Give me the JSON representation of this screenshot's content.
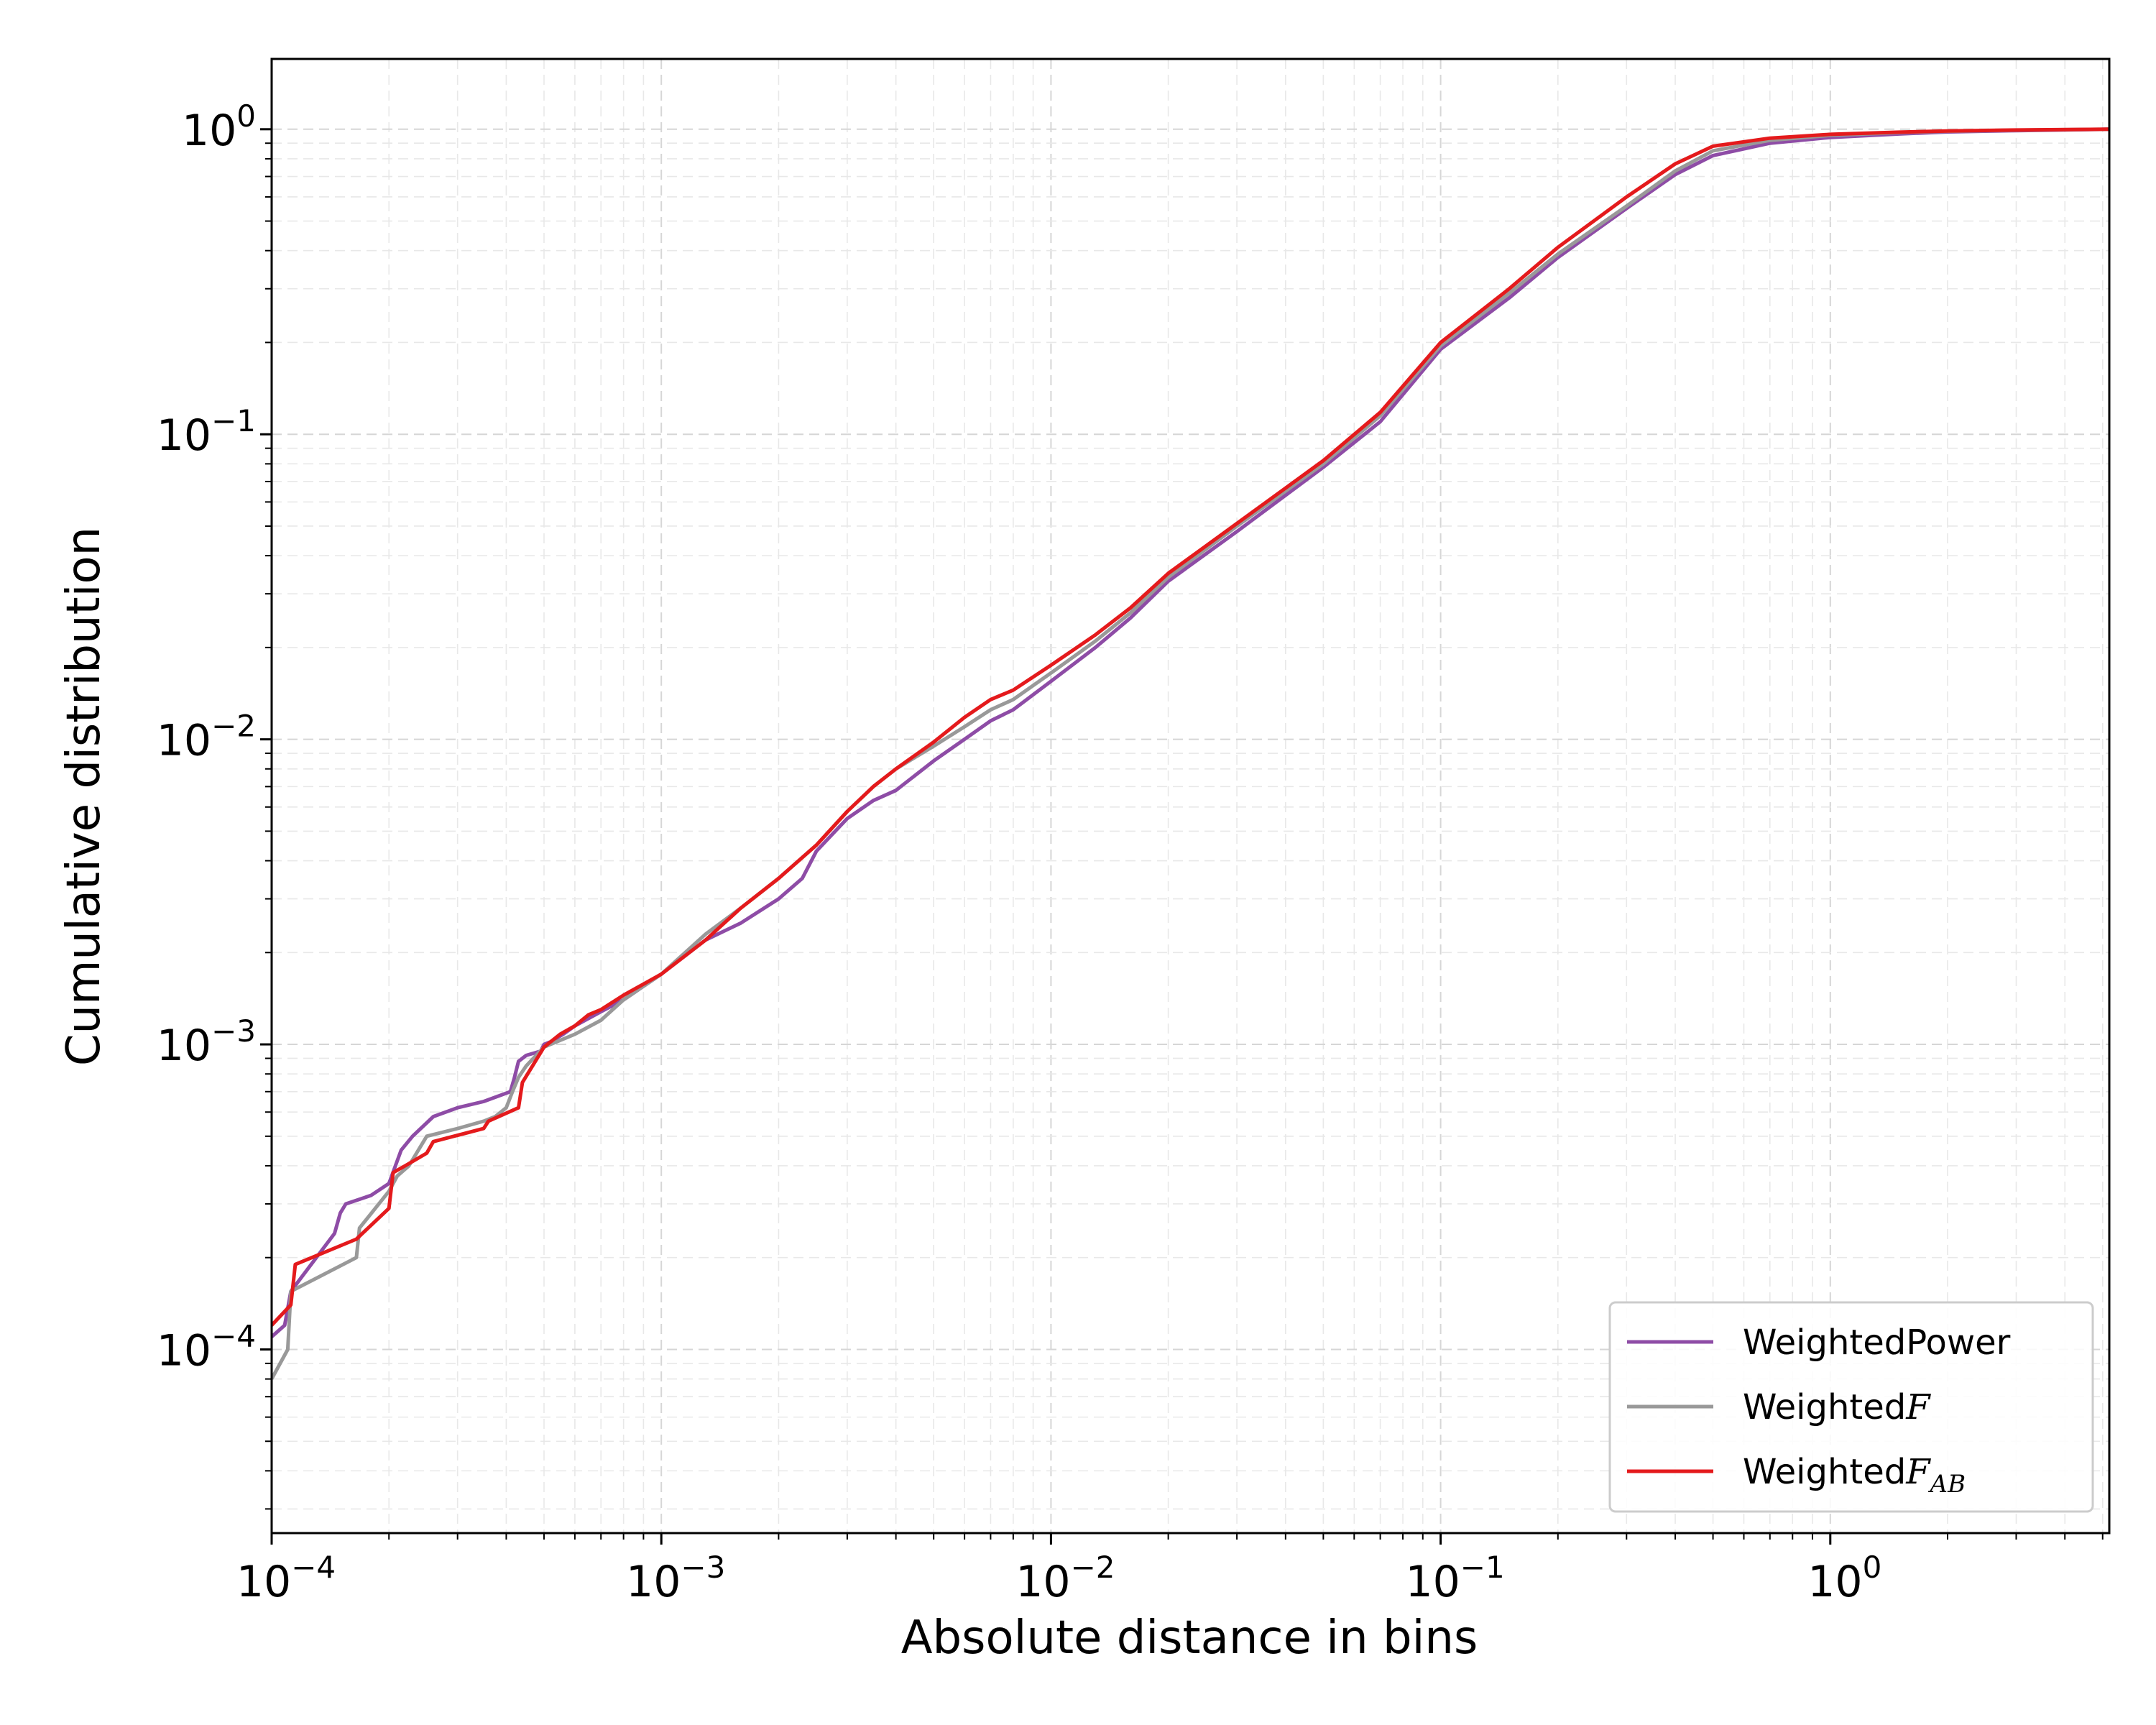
{
  "chart_data": {
    "type": "line",
    "xlabel": "Absolute distance in bins",
    "ylabel": "Cumulative distribution",
    "xscale": "log",
    "yscale": "log",
    "xlim": [
      0.0001,
      5.2
    ],
    "ylim": [
      2.5e-05,
      1.7
    ],
    "grid": true,
    "legend_position": "lower-right",
    "x_tick_labels": [
      {
        "base": "10",
        "exp": "−4",
        "value": 0.0001
      },
      {
        "base": "10",
        "exp": "−3",
        "value": 0.001
      },
      {
        "base": "10",
        "exp": "−2",
        "value": 0.01
      },
      {
        "base": "10",
        "exp": "−1",
        "value": 0.1
      },
      {
        "base": "10",
        "exp": "0",
        "value": 1
      }
    ],
    "y_tick_labels": [
      {
        "base": "10",
        "exp": "−4",
        "value": 0.0001
      },
      {
        "base": "10",
        "exp": "−3",
        "value": 0.001
      },
      {
        "base": "10",
        "exp": "−2",
        "value": 0.01
      },
      {
        "base": "10",
        "exp": "−1",
        "value": 0.1
      },
      {
        "base": "10",
        "exp": "0",
        "value": 1
      }
    ],
    "series": [
      {
        "name": "WeightedPower",
        "legend_prefix": "WeightedPower",
        "legend_math": "",
        "legend_sub": "",
        "color": "#8e4ca6",
        "x": [
          0.0001,
          0.000108,
          0.000112,
          0.000145,
          0.00015,
          0.000155,
          0.00018,
          0.0002,
          0.000215,
          0.00023,
          0.00026,
          0.0003,
          0.00035,
          0.00041,
          0.00042,
          0.00043,
          0.00045,
          0.00049,
          0.0005,
          0.00052,
          0.00056,
          0.0006,
          0.0007,
          0.0008,
          0.001,
          0.0013,
          0.0016,
          0.002,
          0.0023,
          0.0025,
          0.003,
          0.0035,
          0.004,
          0.005,
          0.006,
          0.007,
          0.008,
          0.01,
          0.013,
          0.016,
          0.02,
          0.03,
          0.05,
          0.07,
          0.1,
          0.15,
          0.2,
          0.3,
          0.4,
          0.5,
          0.7,
          1.0,
          1.5,
          2.0,
          3.0,
          5.2
        ],
        "y": [
          0.00011,
          0.00012,
          0.000155,
          0.00024,
          0.00028,
          0.0003,
          0.00032,
          0.00035,
          0.00045,
          0.0005,
          0.00058,
          0.00062,
          0.00065,
          0.0007,
          0.00078,
          0.00088,
          0.00092,
          0.00095,
          0.001,
          0.00102,
          0.00108,
          0.00115,
          0.00128,
          0.0014,
          0.0017,
          0.0022,
          0.0025,
          0.003,
          0.0035,
          0.0043,
          0.0055,
          0.0063,
          0.0068,
          0.0085,
          0.01,
          0.0115,
          0.0125,
          0.0155,
          0.02,
          0.025,
          0.033,
          0.048,
          0.078,
          0.11,
          0.19,
          0.28,
          0.38,
          0.55,
          0.71,
          0.82,
          0.9,
          0.94,
          0.965,
          0.98,
          0.99,
          1.0
        ]
      },
      {
        "name": "WeightedF",
        "legend_prefix": "Weighted",
        "legend_math": "F",
        "legend_sub": "",
        "color": "#999999",
        "x": [
          0.0001,
          0.00011,
          0.000112,
          0.000165,
          0.000168,
          0.0002,
          0.00021,
          0.000225,
          0.00025,
          0.0003,
          0.00035,
          0.000375,
          0.0004,
          0.000415,
          0.00043,
          0.00045,
          0.0005,
          0.0006,
          0.0007,
          0.0008,
          0.001,
          0.0013,
          0.0016,
          0.002,
          0.0025,
          0.003,
          0.0035,
          0.004,
          0.005,
          0.006,
          0.007,
          0.008,
          0.01,
          0.013,
          0.016,
          0.02,
          0.03,
          0.05,
          0.07,
          0.1,
          0.15,
          0.2,
          0.3,
          0.4,
          0.5,
          0.7,
          1.0,
          1.5,
          2.0,
          3.0,
          5.2
        ],
        "y": [
          8e-05,
          0.0001,
          0.000155,
          0.0002,
          0.00025,
          0.00033,
          0.00037,
          0.0004,
          0.0005,
          0.00053,
          0.00056,
          0.00058,
          0.00062,
          0.0007,
          0.00078,
          0.00085,
          0.00098,
          0.00108,
          0.0012,
          0.0014,
          0.0017,
          0.0023,
          0.0028,
          0.0035,
          0.0045,
          0.0058,
          0.007,
          0.008,
          0.0095,
          0.011,
          0.0125,
          0.0135,
          0.0165,
          0.021,
          0.026,
          0.034,
          0.05,
          0.08,
          0.115,
          0.195,
          0.29,
          0.39,
          0.56,
          0.73,
          0.85,
          0.92,
          0.955,
          0.975,
          0.985,
          0.993,
          1.0
        ]
      },
      {
        "name": "WeightedF_AB",
        "legend_prefix": "Weighted",
        "legend_math": "F",
        "legend_sub": "AB",
        "color": "#e41a1c",
        "x": [
          0.0001,
          0.000112,
          0.000115,
          0.000165,
          0.0002,
          0.000205,
          0.00022,
          0.00025,
          0.00026,
          0.00035,
          0.00036,
          0.00043,
          0.00044,
          0.0005,
          0.00055,
          0.0006,
          0.00065,
          0.0007,
          0.0008,
          0.001,
          0.0013,
          0.0016,
          0.002,
          0.0025,
          0.003,
          0.0035,
          0.004,
          0.005,
          0.006,
          0.007,
          0.008,
          0.01,
          0.013,
          0.016,
          0.02,
          0.03,
          0.05,
          0.07,
          0.1,
          0.15,
          0.2,
          0.3,
          0.4,
          0.5,
          0.7,
          1.0,
          1.5,
          2.0,
          3.0,
          5.2
        ],
        "y": [
          0.00012,
          0.00014,
          0.00019,
          0.00023,
          0.00029,
          0.00038,
          0.0004,
          0.00044,
          0.00048,
          0.00053,
          0.00056,
          0.00062,
          0.00075,
          0.00098,
          0.00108,
          0.00115,
          0.00125,
          0.0013,
          0.00145,
          0.0017,
          0.0022,
          0.0028,
          0.0035,
          0.0045,
          0.0058,
          0.007,
          0.008,
          0.0098,
          0.0118,
          0.0135,
          0.0145,
          0.0175,
          0.022,
          0.027,
          0.035,
          0.051,
          0.082,
          0.118,
          0.2,
          0.3,
          0.41,
          0.6,
          0.77,
          0.88,
          0.935,
          0.962,
          0.978,
          0.987,
          0.994,
          1.0
        ]
      }
    ]
  }
}
